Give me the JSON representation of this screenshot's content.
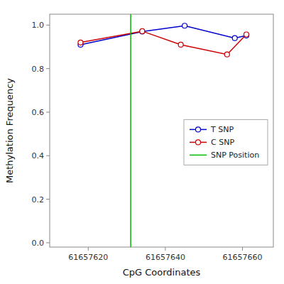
{
  "chart_data": {
    "type": "line",
    "xlabel": "CpG Coordinates",
    "ylabel": "Methylation Frequency",
    "series": [
      {
        "name": "T SNP",
        "color": "#0000cc",
        "marker": "circle",
        "x": [
          61657618,
          61657634,
          61657645,
          61657658,
          61657661
        ],
        "values": [
          0.91,
          0.97,
          0.997,
          0.94,
          0.952
        ]
      },
      {
        "name": "C SNP",
        "color": "#cc0000",
        "marker": "circle",
        "x": [
          61657618,
          61657634,
          61657644,
          61657656,
          61657661
        ],
        "values": [
          0.92,
          0.972,
          0.91,
          0.865,
          0.957
        ]
      },
      {
        "name": "SNP Position",
        "color": "#00bb00",
        "type": "vline",
        "x": [
          61657631
        ]
      }
    ],
    "xlim": [
      61657610,
      61657668
    ],
    "ylim": [
      -0.02,
      1.05
    ],
    "xticks": [
      61657620,
      61657640,
      61657660
    ],
    "yticks": [
      {
        "value": 0.0,
        "label": "0.0"
      },
      0.2,
      0.4,
      0.6,
      0.8,
      {
        "value": 1.0,
        "label": "1.0"
      }
    ],
    "grid": false,
    "legend": "right"
  }
}
